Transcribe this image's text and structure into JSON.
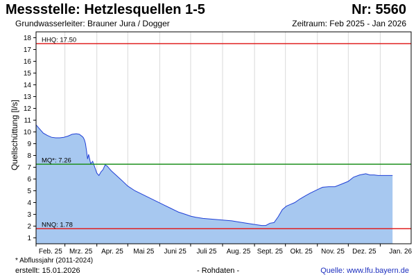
{
  "header": {
    "title": "Messstelle: Hetzlesquellen 1-5",
    "number": "Nr: 5560",
    "aquifer": "Grundwasserleiter:   Brauner Jura / Dogger",
    "period": "Zeitraum: Feb 2025 - Jan 2026"
  },
  "footer": {
    "note": "* Abflussjahr (2011-2024)",
    "created": "erstellt:  15.01.2026",
    "rawdata": "- Rohdaten -",
    "source": "Quelle: www.lfu.bayern.de"
  },
  "colors": {
    "fill": "#a7c8f0",
    "line": "#1f3fd6",
    "hhq": "#e02020",
    "nnq": "#e02020",
    "mq": "#1c8f1c",
    "grid": "#d9d9d9"
  },
  "chart_data": {
    "type": "area",
    "ylabel": "Quellschüttung [l/s]",
    "xlabel": "",
    "ylim": [
      0.5,
      18.5
    ],
    "yticks": [
      1,
      2,
      3,
      4,
      5,
      6,
      7,
      8,
      9,
      10,
      11,
      12,
      13,
      14,
      15,
      16,
      17,
      18
    ],
    "xlim": [
      "2025-02-01",
      "2026-01-31"
    ],
    "xticks": [
      {
        "date": "2025-02-01",
        "label": "Feb. 25"
      },
      {
        "date": "2025-03-01",
        "label": "Mrz. 25"
      },
      {
        "date": "2025-04-01",
        "label": "Apr. 25"
      },
      {
        "date": "2025-05-01",
        "label": "Mai 25"
      },
      {
        "date": "2025-06-01",
        "label": "Juni 25"
      },
      {
        "date": "2025-07-01",
        "label": "Juli 25"
      },
      {
        "date": "2025-08-01",
        "label": "Aug. 25"
      },
      {
        "date": "2025-09-01",
        "label": "Sept. 25"
      },
      {
        "date": "2025-10-01",
        "label": "Okt. 25"
      },
      {
        "date": "2025-11-01",
        "label": "Nov. 25"
      },
      {
        "date": "2025-12-01",
        "label": "Dez. 25"
      },
      {
        "date": "2026-01-01",
        "label": "Jan. 26"
      }
    ],
    "grid": "vertical",
    "reference_lines": [
      {
        "label": "HHQ: 17.50",
        "value": 17.5,
        "color": "#e02020"
      },
      {
        "label": "MQ*: 7.26",
        "value": 7.26,
        "color": "#1c8f1c"
      },
      {
        "label": "NNQ: 1.78",
        "value": 1.78,
        "color": "#e02020"
      }
    ],
    "series": [
      {
        "x": [
          "2025-02-01",
          "2025-02-04",
          "2025-02-08",
          "2025-02-12",
          "2025-02-16",
          "2025-02-20",
          "2025-02-24",
          "2025-02-28",
          "2025-03-04",
          "2025-03-08",
          "2025-03-12",
          "2025-03-15",
          "2025-03-18",
          "2025-03-19",
          "2025-03-20",
          "2025-03-21",
          "2025-03-22",
          "2025-03-23",
          "2025-03-24",
          "2025-03-26",
          "2025-03-28",
          "2025-03-30",
          "2025-04-01",
          "2025-04-03",
          "2025-04-05",
          "2025-04-07",
          "2025-04-09",
          "2025-04-11",
          "2025-04-13",
          "2025-04-15",
          "2025-04-20",
          "2025-04-25",
          "2025-05-01",
          "2025-05-08",
          "2025-05-15",
          "2025-05-22",
          "2025-05-29",
          "2025-06-05",
          "2025-06-12",
          "2025-06-19",
          "2025-06-26",
          "2025-07-01",
          "2025-07-06",
          "2025-07-13",
          "2025-07-20",
          "2025-07-27",
          "2025-08-03",
          "2025-08-10",
          "2025-08-17",
          "2025-08-24",
          "2025-08-31",
          "2025-09-04",
          "2025-09-08",
          "2025-09-12",
          "2025-09-16",
          "2025-09-20",
          "2025-09-24",
          "2025-09-28",
          "2025-10-02",
          "2025-10-06",
          "2025-10-10",
          "2025-10-15",
          "2025-10-20",
          "2025-10-25",
          "2025-11-01",
          "2025-11-06",
          "2025-11-12",
          "2025-11-18",
          "2025-11-24",
          "2025-12-01",
          "2025-12-06",
          "2025-12-12",
          "2025-12-18",
          "2025-12-22",
          "2025-12-26",
          "2025-12-30",
          "2026-01-06",
          "2026-01-13"
        ],
        "values": [
          10.6,
          10.3,
          9.9,
          9.7,
          9.55,
          9.5,
          9.5,
          9.55,
          9.65,
          9.8,
          9.85,
          9.8,
          9.6,
          9.5,
          9.3,
          9.0,
          8.4,
          7.7,
          8.1,
          7.3,
          7.5,
          7.0,
          6.5,
          6.3,
          6.6,
          6.8,
          7.2,
          7.1,
          6.9,
          6.7,
          6.3,
          5.9,
          5.4,
          5.0,
          4.7,
          4.4,
          4.1,
          3.8,
          3.5,
          3.2,
          3.0,
          2.85,
          2.75,
          2.65,
          2.6,
          2.55,
          2.5,
          2.45,
          2.35,
          2.25,
          2.15,
          2.1,
          2.05,
          2.05,
          2.25,
          2.3,
          2.8,
          3.4,
          3.7,
          3.85,
          4.0,
          4.3,
          4.55,
          4.8,
          5.1,
          5.3,
          5.35,
          5.35,
          5.55,
          5.8,
          6.15,
          6.35,
          6.45,
          6.35,
          6.35,
          6.3,
          6.3,
          6.3
        ]
      }
    ]
  }
}
